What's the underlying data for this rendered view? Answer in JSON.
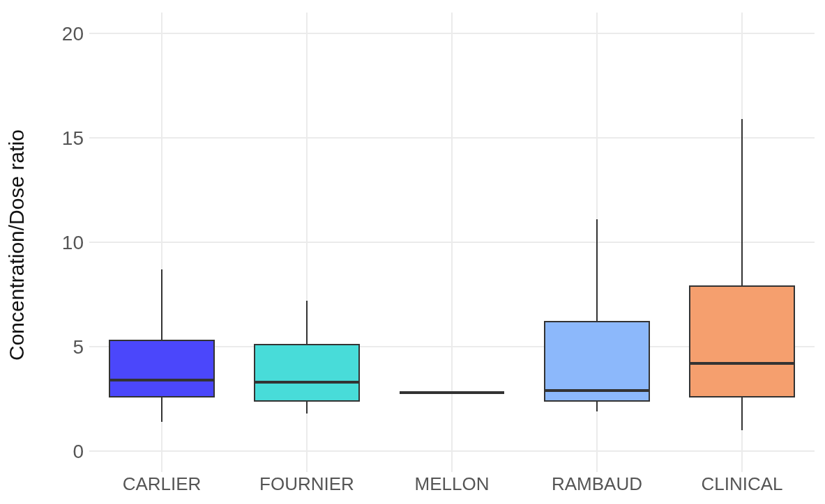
{
  "chart_data": {
    "type": "box",
    "ylabel": "Concentration/Dose ratio",
    "categories": [
      "CARLIER",
      "FOURNIER",
      "MELLON",
      "RAMBAUD",
      "CLINICAL"
    ],
    "boxes": [
      {
        "low": 1.4,
        "q1": 2.6,
        "median": 3.4,
        "q3": 5.3,
        "high": 8.7
      },
      {
        "low": 1.8,
        "q1": 2.4,
        "median": 3.3,
        "q3": 5.1,
        "high": 7.2
      },
      {
        "low": 2.8,
        "q1": 2.8,
        "median": 2.8,
        "q3": 2.8,
        "high": 2.8
      },
      {
        "low": 1.9,
        "q1": 2.4,
        "median": 2.9,
        "q3": 6.2,
        "high": 11.1
      },
      {
        "low": 1.0,
        "q1": 2.6,
        "median": 4.2,
        "q3": 7.9,
        "high": 15.9
      }
    ],
    "colors": [
      "#4b47fb",
      "#48dcd9",
      "#333333",
      "#8cb8fb",
      "#f59f6e"
    ],
    "ylim": [
      -1,
      21
    ],
    "yticks": [
      0,
      5,
      10,
      15,
      20
    ],
    "grid": true
  }
}
